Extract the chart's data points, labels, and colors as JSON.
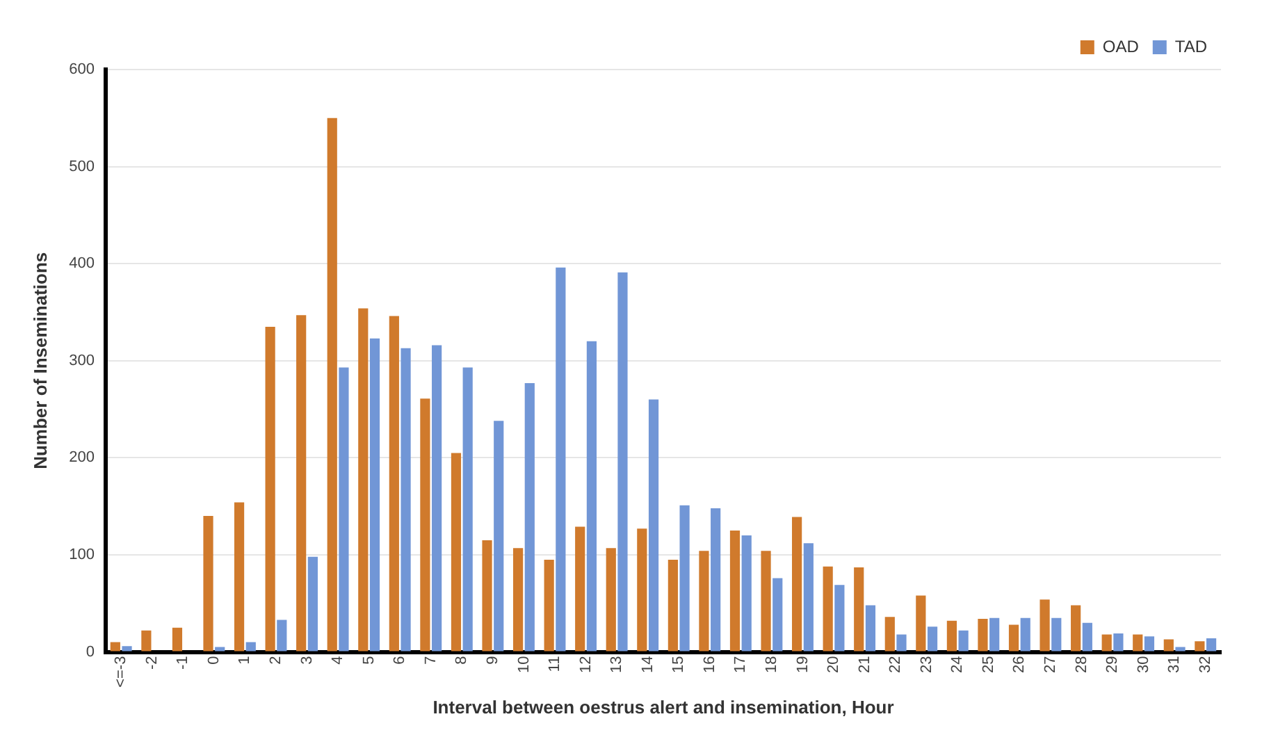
{
  "chart_data": {
    "type": "bar",
    "xlabel": "Interval between oestrus alert and insemination, Hour",
    "ylabel": "Number of Inseminations",
    "categories": [
      "<=-3",
      "-2",
      "-1",
      "0",
      "1",
      "2",
      "3",
      "4",
      "5",
      "6",
      "7",
      "8",
      "9",
      "10",
      "11",
      "12",
      "13",
      "14",
      "15",
      "16",
      "17",
      "18",
      "19",
      "20",
      "21",
      "22",
      "23",
      "24",
      "25",
      "26",
      "27",
      "28",
      "29",
      "30",
      "31",
      "32"
    ],
    "series": [
      {
        "name": "OAD",
        "color": "#d07a2c",
        "values": [
          10,
          22,
          25,
          140,
          154,
          335,
          347,
          550,
          354,
          346,
          261,
          205,
          115,
          107,
          95,
          129,
          107,
          127,
          95,
          104,
          125,
          104,
          139,
          88,
          87,
          36,
          58,
          32,
          34,
          28,
          54,
          48,
          18,
          18,
          13,
          11
        ]
      },
      {
        "name": "TAD",
        "color": "#7196d6",
        "values": [
          6,
          0,
          0,
          5,
          10,
          33,
          98,
          293,
          323,
          313,
          316,
          293,
          238,
          277,
          396,
          320,
          391,
          260,
          151,
          148,
          120,
          76,
          112,
          69,
          48,
          18,
          26,
          22,
          35,
          35,
          35,
          30,
          19,
          16,
          5,
          14
        ]
      }
    ],
    "ylim": [
      0,
      600
    ],
    "yticks": [
      0,
      100,
      200,
      300,
      400,
      500,
      600
    ],
    "grid": "y",
    "legend": "top right"
  }
}
